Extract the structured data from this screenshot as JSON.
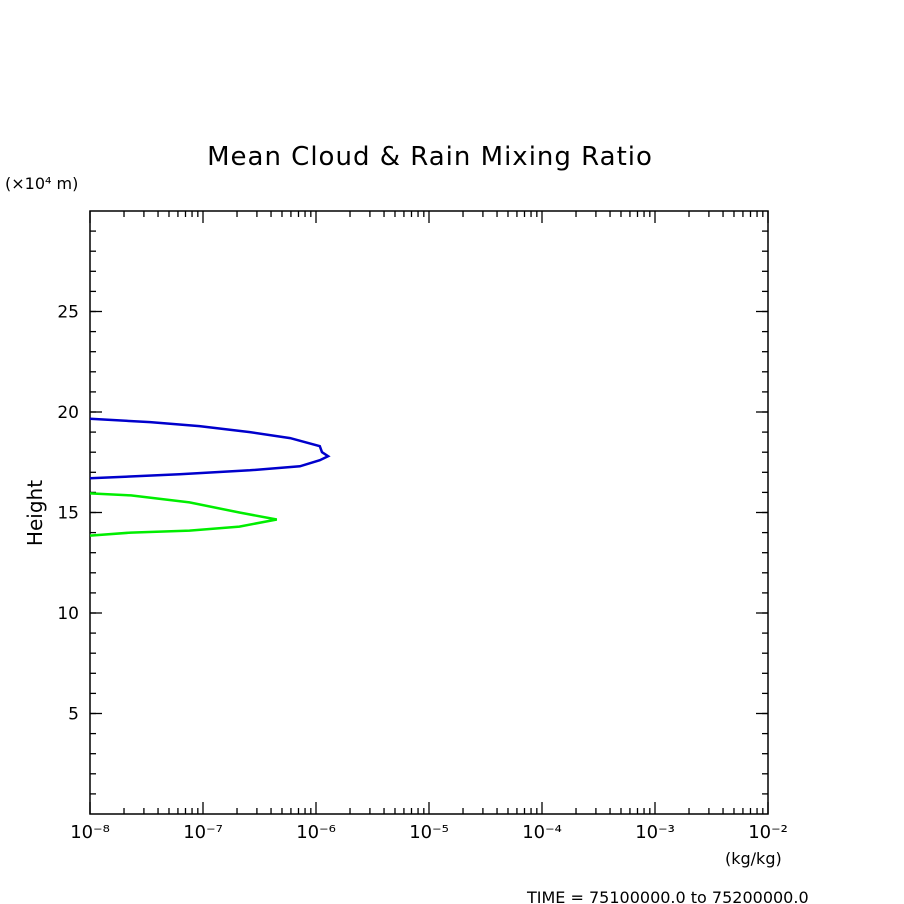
{
  "chart_data": {
    "type": "line",
    "title": "Mean Cloud & Rain Mixing Ratio",
    "y_label": "Height",
    "y_unit": "(×10⁴ m)",
    "x_unit": "(kg/kg)",
    "footer": "TIME = 75100000.0 to 75200000.0",
    "x_log": true,
    "xlim": [
      1e-08,
      0.01
    ],
    "xticks": [
      {
        "value": 1e-08,
        "label": "10⁻⁸"
      },
      {
        "value": 1e-07,
        "label": "10⁻⁷"
      },
      {
        "value": 1e-06,
        "label": "10⁻⁶"
      },
      {
        "value": 1e-05,
        "label": "10⁻⁵"
      },
      {
        "value": 0.0001,
        "label": "10⁻⁴"
      },
      {
        "value": 0.001,
        "label": "10⁻³"
      },
      {
        "value": 0.01,
        "label": "10⁻²"
      }
    ],
    "ylim": [
      0,
      30
    ],
    "yticks": [
      5,
      10,
      15,
      20,
      25
    ],
    "series": [
      {
        "color": "#0000cc",
        "x": [
          1e-08,
          3.4e-08,
          9.3e-08,
          2.6e-07,
          5.9e-07,
          1.08e-06,
          1.13e-06,
          1.28e-06,
          1.08e-06,
          7.2e-07,
          2.6e-07,
          6.2e-08,
          1e-08
        ],
        "y": [
          19.66,
          19.5,
          19.3,
          19.0,
          18.7,
          18.3,
          18.0,
          17.8,
          17.6,
          17.3,
          17.1,
          16.9,
          16.7
        ]
      },
      {
        "color": "#00ee00",
        "x": [
          1e-08,
          2.3e-08,
          7.6e-08,
          2.1e-07,
          4.5e-07,
          2.1e-07,
          7.6e-08,
          2.3e-08,
          1e-08
        ],
        "y": [
          15.95,
          15.85,
          15.5,
          15.0,
          14.65,
          14.3,
          14.1,
          14.0,
          13.85
        ]
      }
    ]
  }
}
